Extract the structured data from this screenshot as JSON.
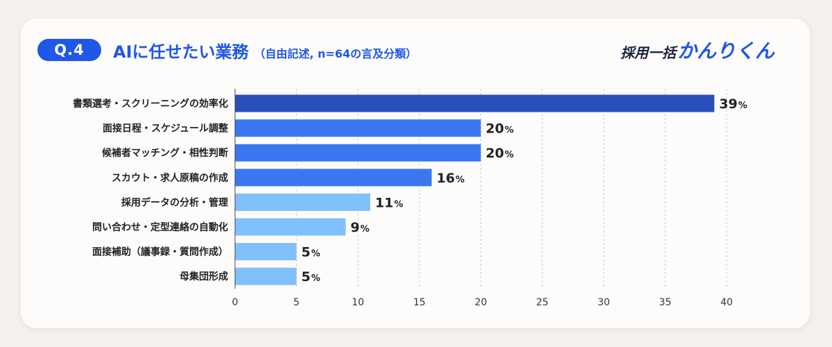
{
  "header": {
    "badge": "Q.4",
    "title": "AIに任せたい業務",
    "subtitle": "（自由記述, n=64の言及分類）",
    "logo_prefix": "採用一括",
    "logo_main": "かんりくん"
  },
  "colors": {
    "accent": "#1f57e8",
    "bar_dark": "#2b4fb8",
    "bar_mid": "#3b78f0",
    "bar_light": "#80c0fb"
  },
  "chart_data": {
    "type": "bar",
    "orientation": "horizontal",
    "categories": [
      "書類選考・スクリーニングの効率化",
      "面接日程・スケジュール調整",
      "候補者マッチング・相性判断",
      "スカウト・求人原稿の作成",
      "採用データの分析・管理",
      "問い合わせ・定型連絡の自動化",
      "面接補助（議事録・質問作成）",
      "母集団形成"
    ],
    "values": [
      39,
      20,
      20,
      16,
      11,
      9,
      5,
      5
    ],
    "unit": "%",
    "xlim": [
      0,
      40
    ],
    "xticks": [
      0,
      5,
      10,
      15,
      20,
      25,
      30,
      35,
      40
    ],
    "grid": "vertical dashed"
  }
}
